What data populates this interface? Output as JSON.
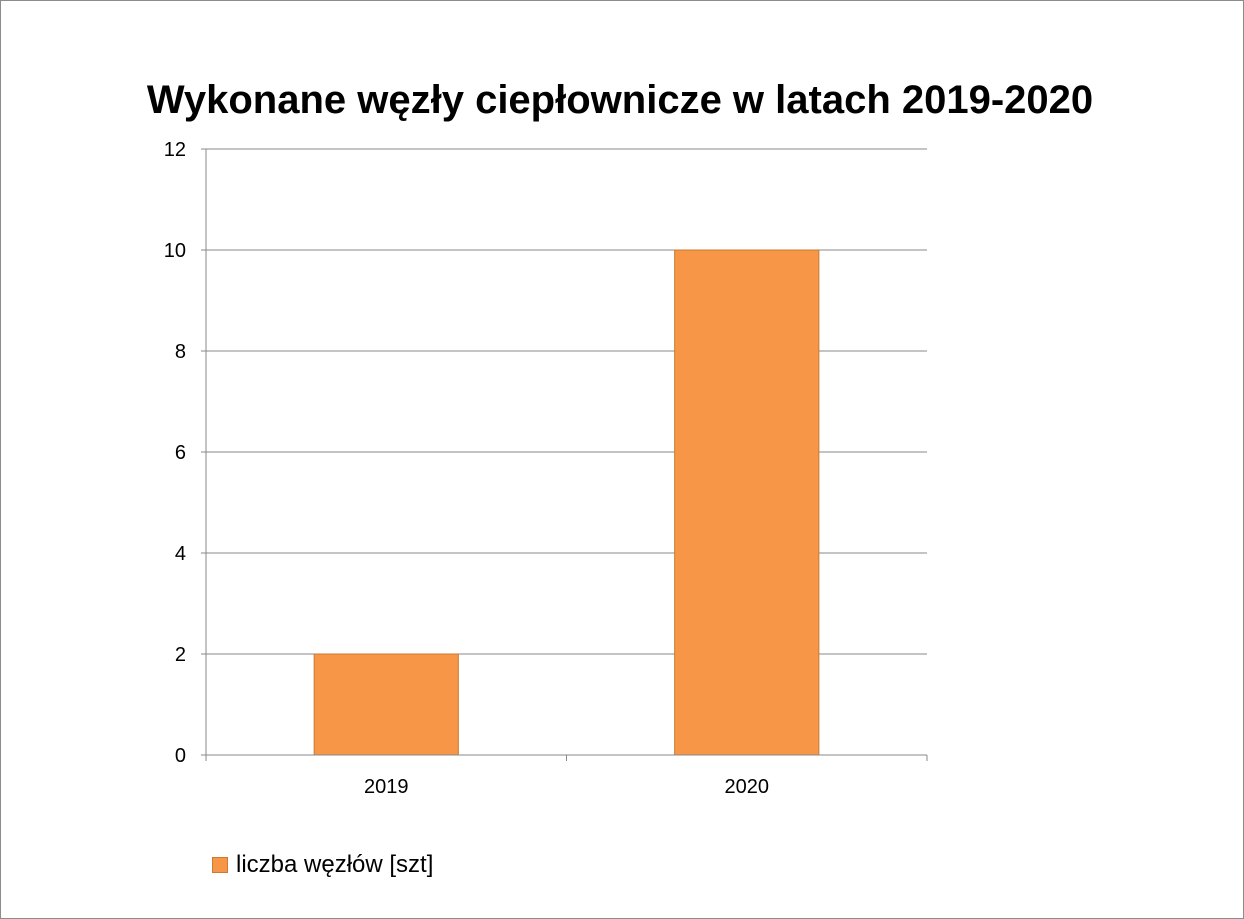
{
  "chart_data": {
    "type": "bar",
    "title": "Wykonane węzły ciepłownicze w latach 2019-2020",
    "categories": [
      "2019",
      "2020"
    ],
    "series": [
      {
        "name": "liczba węzłów [szt]",
        "values": [
          2,
          10
        ],
        "color": "#f79646"
      }
    ],
    "xlabel": "",
    "ylabel": "",
    "ylim": [
      0,
      12
    ],
    "yticks": [
      0,
      2,
      4,
      6,
      8,
      10,
      12
    ],
    "grid": true,
    "legend_position": "bottom-left"
  }
}
